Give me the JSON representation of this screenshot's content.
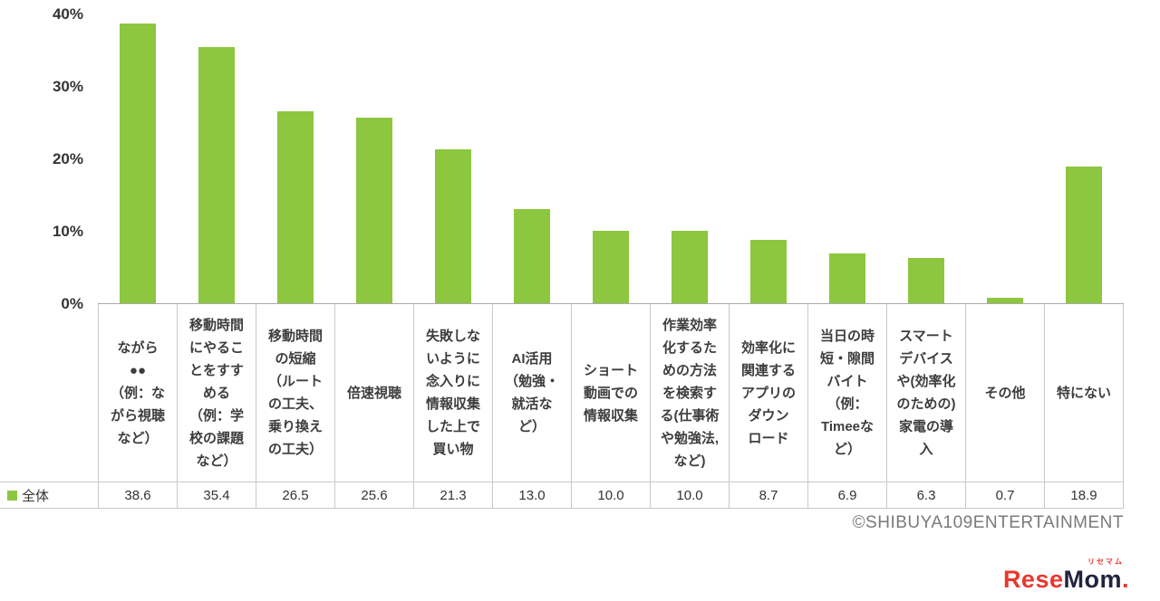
{
  "chart_data": {
    "type": "bar",
    "title": "",
    "series_name": "全体",
    "y_ticks": [
      "40%",
      "30%",
      "20%",
      "10%",
      "0%"
    ],
    "ylim": [
      0,
      40
    ],
    "grid": false,
    "bar_color": "#8dc63f",
    "legend_position": "bottom-left",
    "categories": [
      "ながら\n●●\n（例：な\nがら視聴\nなど）",
      "移動時間\nにやるこ\nとをすす\nめる\n（例：学\n校の課題\nなど）",
      "移動時間\nの短縮\n（ルート\nの工夫、\n乗り換え\nの工夫）",
      "倍速視聴",
      "失敗しな\nいように\n念入りに\n情報収集\nした上で\n買い物",
      "AI活用\n（勉強・\n就活な\nど）",
      "ショート\n動画での\n情報収集",
      "作業効率\n化するた\nめの方法\nを検索す\nる(仕事術\nや勉強法,\nなど)",
      "効率化に\n関連する\nアプリの\nダウン\nロード",
      "当日の時\n短・隙間\nバイト\n（例：\nTimeeな\nど）",
      "スマート\nデバイス\nや(効率化\nのための)\n家電の導\n入",
      "その他",
      "特にない"
    ],
    "values": [
      38.6,
      35.4,
      26.5,
      25.6,
      21.3,
      13.0,
      10.0,
      10.0,
      8.7,
      6.9,
      6.3,
      0.7,
      18.9
    ],
    "value_labels": [
      "38.6",
      "35.4",
      "26.5",
      "25.6",
      "21.3",
      "13.0",
      "10.0",
      "10.0",
      "8.7",
      "6.9",
      "6.3",
      "0.7",
      "18.9"
    ]
  },
  "footer": {
    "copyright": "©SHIBUYA109ENTERTAINMENT"
  },
  "logo": {
    "furigana": "リセマム",
    "text_red": "Rese",
    "text_dark": "Mom",
    "dot": "."
  }
}
